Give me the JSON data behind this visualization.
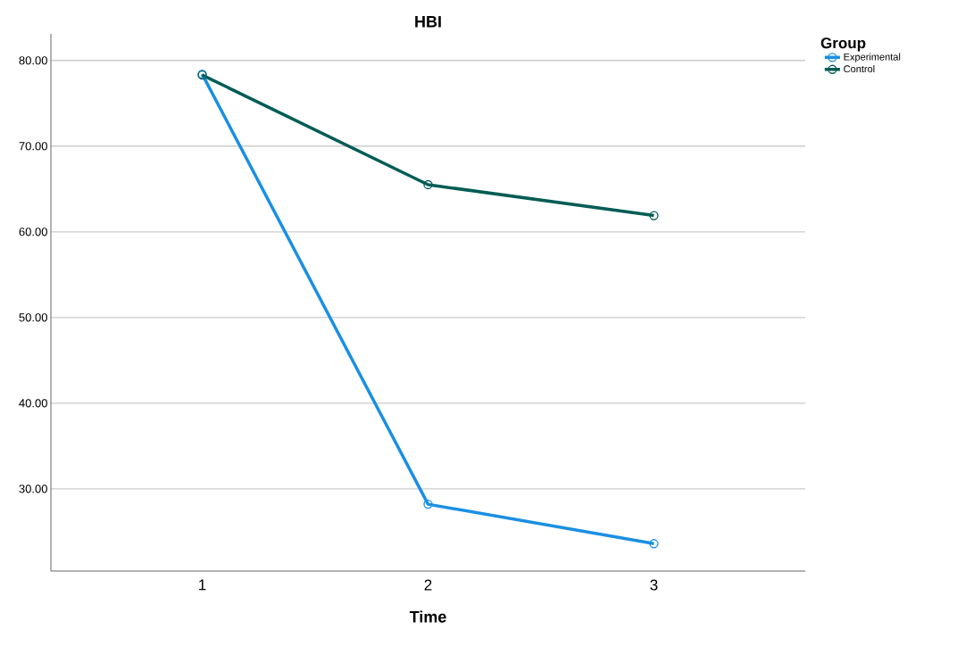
{
  "chart_data": {
    "type": "line",
    "title": "HBI",
    "xlabel": "Time",
    "legend_title": "Group",
    "categories": [
      "1",
      "2",
      "3"
    ],
    "series": [
      {
        "name": "Experimental",
        "color": "#1a8fe3",
        "values": [
          78.4,
          28.2,
          23.6
        ]
      },
      {
        "name": "Control",
        "color": "#005c55",
        "values": [
          78.3,
          65.5,
          61.9
        ]
      }
    ],
    "ylim": [
      20.4,
      83.1
    ],
    "yticks": [
      {
        "value": 30,
        "label": "30.00"
      },
      {
        "value": 40,
        "label": "40.00"
      },
      {
        "value": 50,
        "label": "50.00"
      },
      {
        "value": 60,
        "label": "60.00"
      },
      {
        "value": 70,
        "label": "70.00"
      },
      {
        "value": 80,
        "label": "80.00"
      }
    ],
    "grid": "y",
    "legend": "top right",
    "marker": "circle",
    "line_style": "solid"
  }
}
